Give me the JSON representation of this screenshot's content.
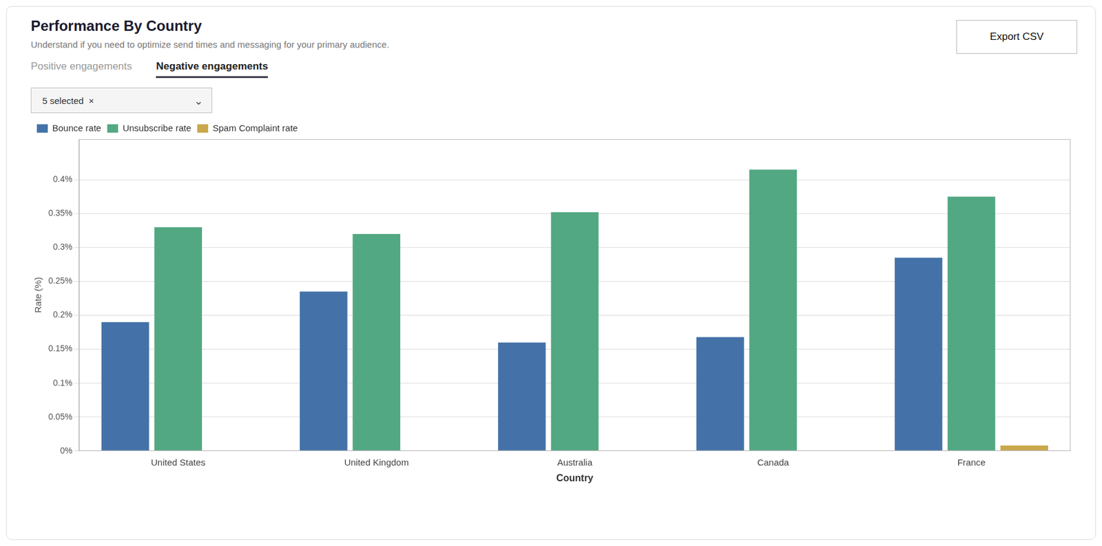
{
  "chart_data": {
    "type": "bar",
    "title": "Performance By Country",
    "subtitle": "Understand if you need to optimize send times and messaging for your primary audience.",
    "annotations": [
      "Positive engagements",
      "Negative engagements",
      "5 selected  ×",
      "⌄",
      "Export CSV"
    ],
    "xlabel": "Country",
    "ylabel": "Rate (%)",
    "categories": [
      "United States",
      "United Kingdom",
      "Australia",
      "Canada",
      "France"
    ],
    "series": [
      {
        "name": "Bounce rate",
        "color": "#4472A8",
        "values": [
          0.19,
          0.235,
          0.16,
          0.168,
          0.285
        ]
      },
      {
        "name": "Unsubscribe rate",
        "color": "#52A882",
        "values": [
          0.33,
          0.32,
          0.352,
          0.415,
          0.375
        ]
      },
      {
        "name": "Spam Complaint rate",
        "color": "#C9A84C",
        "values": [
          0.0,
          0.0,
          0.0,
          0.0,
          0.008
        ]
      }
    ],
    "ylim": [
      0,
      0.46
    ],
    "yticks": [
      {
        "value": 0.0,
        "label": "0%"
      },
      {
        "value": 0.05,
        "label": "0.05%"
      },
      {
        "value": 0.1,
        "label": "0.1%"
      },
      {
        "value": 0.15,
        "label": "0.15%"
      },
      {
        "value": 0.2,
        "label": "0.2%"
      },
      {
        "value": 0.25,
        "label": "0.25%"
      },
      {
        "value": 0.3,
        "label": "0.3%"
      },
      {
        "value": 0.35,
        "label": "0.35%"
      },
      {
        "value": 0.4,
        "label": "0.4%"
      }
    ],
    "grid": true,
    "legend": "upper left"
  }
}
